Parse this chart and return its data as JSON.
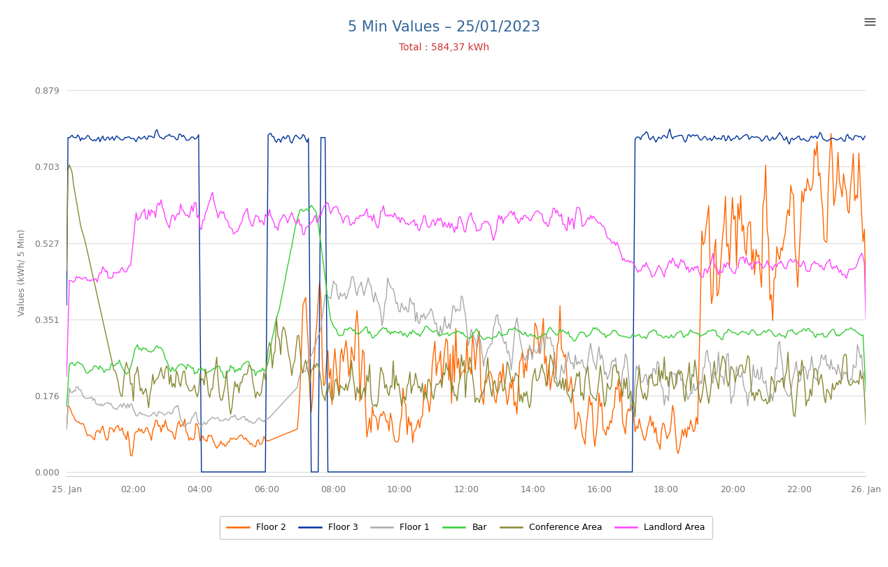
{
  "title": "5 Min Values – 25/01/2023",
  "subtitle": "Total : 584,37 kWh",
  "ylabel": "Values (kWh/ 5 Min)",
  "yticks": [
    0,
    0.176,
    0.351,
    0.527,
    0.703,
    0.879
  ],
  "ymax": 0.93,
  "background": "#ffffff",
  "grid_color": "#dddddd",
  "title_color": "#336699",
  "subtitle_color": "#cc3333",
  "series": [
    {
      "name": "Floor 2",
      "color": "#ff6600"
    },
    {
      "name": "Floor 3",
      "color": "#003399"
    },
    {
      "name": "Floor 1",
      "color": "#aaaaaa"
    },
    {
      "name": "Bar",
      "color": "#33cc33"
    },
    {
      "name": "Conference Area",
      "color": "#888833"
    },
    {
      "name": "Landlord Area",
      "color": "#ff44ff"
    }
  ],
  "xtick_labels": [
    "25. Jan",
    "02:00",
    "04:00",
    "06:00",
    "08:00",
    "10:00",
    "12:00",
    "14:00",
    "16:00",
    "18:00",
    "20:00",
    "22:00",
    "26. Jan"
  ],
  "n_points": 576,
  "seed": 77
}
